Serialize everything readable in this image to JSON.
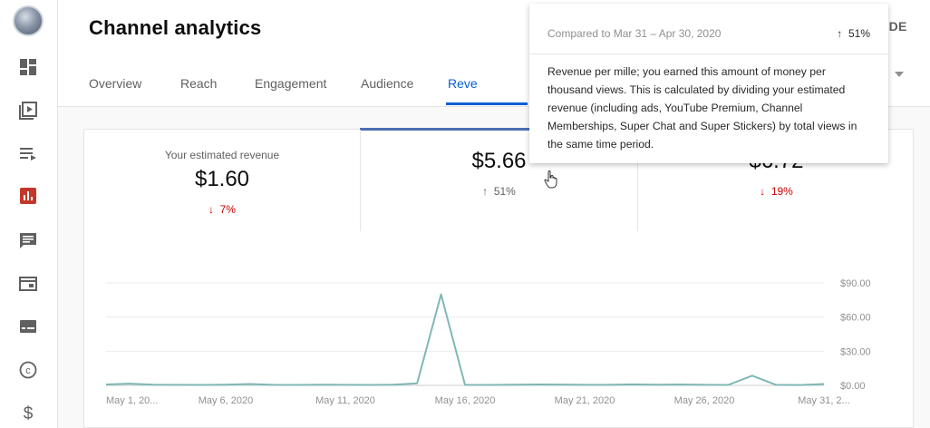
{
  "app": {
    "title": "Channel analytics",
    "advanced_mode_label": "ANCED MODE"
  },
  "sidebar": {
    "items": [
      {
        "name": "dashboard",
        "icon": "dashboard-icon"
      },
      {
        "name": "content",
        "icon": "video-library-icon"
      },
      {
        "name": "playlists",
        "icon": "playlist-icon"
      },
      {
        "name": "analytics",
        "icon": "analytics-icon",
        "active": true
      },
      {
        "name": "comments",
        "icon": "comment-icon"
      },
      {
        "name": "subtitles",
        "icon": "subtitles-icon"
      },
      {
        "name": "monetization-cards",
        "icon": "card-icon"
      },
      {
        "name": "copyright",
        "icon": "copyright-icon"
      },
      {
        "name": "monetization",
        "icon": "dollar-icon"
      }
    ]
  },
  "tabs": [
    "Overview",
    "Reach",
    "Engagement",
    "Audience",
    "Reve"
  ],
  "metrics": [
    {
      "label": "Your estimated revenue",
      "value": "$1.60",
      "delta": "7%",
      "direction": "down"
    },
    {
      "label": "",
      "value": "$5.66",
      "delta": "51%",
      "direction": "up"
    },
    {
      "label": "",
      "value": "$6.72",
      "delta": "19%",
      "direction": "down"
    }
  ],
  "tooltip": {
    "compared": "Compared to Mar 31 – Apr 30, 2020",
    "change": "51%",
    "body": "Revenue per mille; you earned this amount of money per thousand views. This is calculated by dividing your estimated revenue (including ads, YouTube Premium, Channel Memberships, Super Chat and Super Stickers) by total views in the same time period."
  },
  "colors": {
    "accent": "#065fd4",
    "line": "#7fb8b4",
    "down": "#cc0000",
    "analytics_active": "#c0392b"
  },
  "chart_data": {
    "type": "line",
    "ylim": [
      0,
      90
    ],
    "y_ticks": [
      {
        "value": 90,
        "label": "$90.00"
      },
      {
        "value": 60,
        "label": "$60.00"
      },
      {
        "value": 30,
        "label": "$30.00"
      },
      {
        "value": 0,
        "label": "$0.00"
      }
    ],
    "x_labels": [
      {
        "day": 0,
        "label": "May 1, 20..."
      },
      {
        "day": 5,
        "label": "May 6, 2020"
      },
      {
        "day": 10,
        "label": "May 11, 2020"
      },
      {
        "day": 15,
        "label": "May 16, 2020"
      },
      {
        "day": 20,
        "label": "May 21, 2020"
      },
      {
        "day": 25,
        "label": "May 26, 2020"
      },
      {
        "day": 30,
        "label": "May 31, 2..."
      }
    ],
    "series": [
      {
        "name": "RPM",
        "values": [
          0.8,
          1.5,
          0.6,
          0.5,
          0.4,
          0.6,
          1.2,
          0.5,
          0.4,
          0.6,
          0.5,
          0.4,
          0.6,
          1.8,
          80,
          0.5,
          0.4,
          0.6,
          0.8,
          0.7,
          0.5,
          0.5,
          0.9,
          0.6,
          0.8,
          0.5,
          0.4,
          8.5,
          0.5,
          0.3,
          1.2
        ]
      }
    ]
  }
}
